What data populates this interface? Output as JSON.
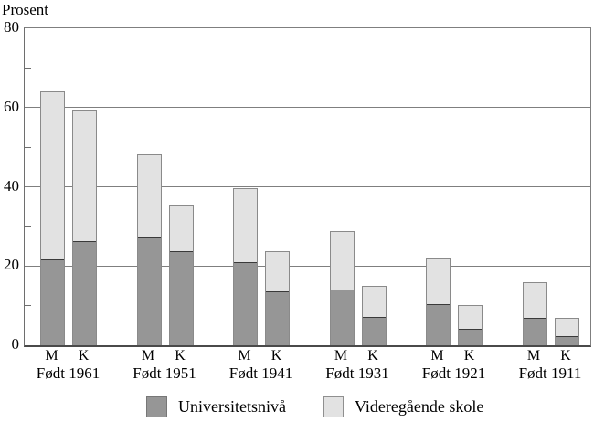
{
  "chart_data": {
    "type": "bar",
    "stacked": true,
    "title": "Prosent",
    "ylabel": "Prosent",
    "xlabel": "",
    "ylim": [
      0,
      80
    ],
    "yticks_major": [
      0,
      20,
      40,
      60,
      80
    ],
    "yticks_minor": [
      10,
      30,
      50,
      70
    ],
    "grid": "horizontal-major-lines",
    "legend_position": "bottom",
    "bar_labels": [
      "M",
      "K"
    ],
    "categories": [
      "Født 1961",
      "Født 1951",
      "Født 1941",
      "Født 1931",
      "Født 1921",
      "Født 1911"
    ],
    "series": [
      {
        "name": "Universitetsnivå",
        "color": "#969696",
        "values": {
          "M": [
            21.7,
            27.4,
            21.1,
            14.2,
            10.4,
            7.0
          ],
          "K": [
            26.4,
            24.0,
            13.7,
            7.2,
            4.2,
            2.4
          ]
        }
      },
      {
        "name": "Videregående skole",
        "color": "#e2e2e2",
        "values": {
          "M": [
            42.3,
            20.8,
            18.6,
            14.7,
            11.5,
            8.8
          ],
          "K": [
            33.2,
            11.4,
            10.0,
            7.9,
            6.0,
            4.5
          ]
        }
      }
    ],
    "totals": {
      "M": [
        64.0,
        48.2,
        39.7,
        28.9,
        21.9,
        15.8
      ],
      "K": [
        59.6,
        35.4,
        23.7,
        15.1,
        10.2,
        6.9
      ]
    },
    "colors": {
      "axis": "#7f7f7f",
      "segment_divider": "#3a3a3a",
      "text": "#000000"
    }
  }
}
